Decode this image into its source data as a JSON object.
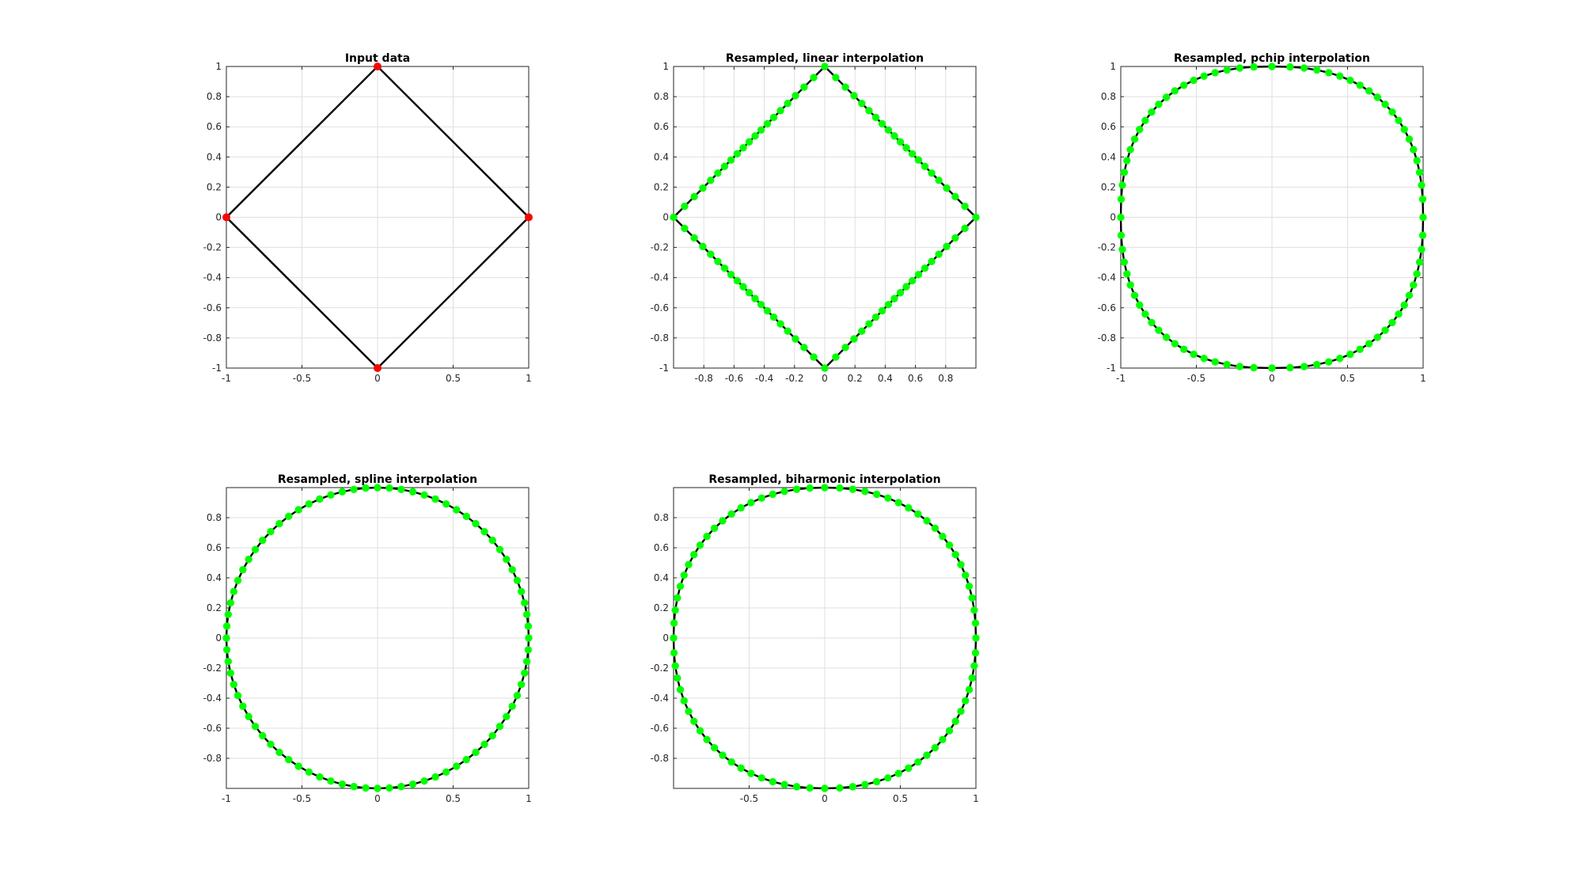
{
  "colors": {
    "line": "#000000",
    "input_markers": "#ff0000",
    "resampled_markers": "#00ff00",
    "grid": "#dfdfdf",
    "axes": "#262626"
  },
  "chart_data": [
    {
      "type": "line",
      "title": "Input data",
      "xlim": [
        -1,
        1
      ],
      "ylim": [
        -1,
        1
      ],
      "grid": true,
      "xticks": [
        -1,
        -0.5,
        0,
        0.5,
        1
      ],
      "xtick_labels": [
        "-1",
        "-0.5",
        "0",
        "0.5",
        "1"
      ],
      "yticks": [
        1,
        0.8,
        0.6,
        0.4,
        0.2,
        0,
        -0.2,
        -0.4,
        -0.6,
        -0.8,
        -1
      ],
      "ytick_labels": [
        "1",
        "0.8",
        "0.6",
        "0.4",
        "0.2",
        "0",
        "-0.2",
        "-0.4",
        "-0.6",
        "-0.8",
        "-1"
      ],
      "line": {
        "x": [
          -1,
          0,
          1,
          0,
          -1
        ],
        "y": [
          0,
          1,
          0,
          -1,
          0
        ]
      },
      "markers": {
        "x": [
          -1,
          0,
          1,
          0
        ],
        "y": [
          0,
          1,
          0,
          -1
        ],
        "color": "#ff0000"
      }
    },
    {
      "type": "line",
      "title": "Resampled, linear interpolation",
      "xlim": [
        -1,
        1
      ],
      "ylim": [
        -1,
        1
      ],
      "grid": true,
      "xticks": [
        -0.8,
        -0.6,
        -0.4,
        -0.2,
        0,
        0.2,
        0.4,
        0.6,
        0.8
      ],
      "xtick_labels": [
        "-0.8",
        "-0.6",
        "-0.4",
        "-0.2",
        "0",
        "0.2",
        "0.4",
        "0.6",
        "0.8"
      ],
      "yticks": [
        1,
        0.8,
        0.6,
        0.4,
        0.2,
        0,
        -0.2,
        -0.4,
        -0.6,
        -0.8,
        -1
      ],
      "ytick_labels": [
        "1",
        "0.8",
        "0.6",
        "0.4",
        "0.2",
        "0",
        "-0.2",
        "-0.4",
        "-0.6",
        "-0.8",
        "-1"
      ],
      "shape": "diamond",
      "points": 80,
      "markers_color": "#00ff00"
    },
    {
      "type": "line",
      "title": "Resampled, pchip interpolation",
      "xlim": [
        -1,
        1
      ],
      "ylim": [
        -1,
        1
      ],
      "grid": true,
      "xticks": [
        -1,
        -0.5,
        0,
        0.5,
        1
      ],
      "xtick_labels": [
        "-1",
        "-0.5",
        "0",
        "0.5",
        "1"
      ],
      "yticks": [
        1,
        0.8,
        0.6,
        0.4,
        0.2,
        0,
        -0.2,
        -0.4,
        -0.6,
        -0.8,
        -1
      ],
      "ytick_labels": [
        "1",
        "0.8",
        "0.6",
        "0.4",
        "0.2",
        "0",
        "-0.2",
        "-0.4",
        "-0.6",
        "-0.8",
        "-1"
      ],
      "shape": "superellipse",
      "exponent": 2.4,
      "points": 80,
      "markers_color": "#00ff00"
    },
    {
      "type": "line",
      "title": "Resampled, spline interpolation",
      "xlim": [
        -1,
        1
      ],
      "ylim": [
        -1,
        1
      ],
      "grid": true,
      "xticks": [
        -1,
        -0.5,
        0,
        0.5,
        1
      ],
      "xtick_labels": [
        "-1",
        "-0.5",
        "0",
        "0.5",
        "1"
      ],
      "yticks": [
        0.8,
        0.6,
        0.4,
        0.2,
        0,
        -0.2,
        -0.4,
        -0.6,
        -0.8
      ],
      "ytick_labels": [
        "0.8",
        "0.6",
        "0.4",
        "0.2",
        "0",
        "-0.2",
        "-0.4",
        "-0.6",
        "-0.8"
      ],
      "shape": "circle",
      "radius": 1,
      "points": 80,
      "markers_color": "#00ff00"
    },
    {
      "type": "line",
      "title": "Resampled, biharmonic interpolation",
      "xlim": [
        -1,
        1
      ],
      "ylim": [
        -1,
        1
      ],
      "grid": true,
      "xticks": [
        -0.5,
        0,
        0.5,
        1
      ],
      "xtick_labels": [
        "-0.5",
        "0",
        "0.5",
        "1"
      ],
      "yticks": [
        0.8,
        0.6,
        0.4,
        0.2,
        0,
        -0.2,
        -0.4,
        -0.6,
        -0.8
      ],
      "ytick_labels": [
        "0.8",
        "0.6",
        "0.4",
        "0.2",
        "0",
        "-0.2",
        "-0.4",
        "-0.6",
        "-0.8"
      ],
      "shape": "superellipse",
      "exponent": 2.2,
      "points": 80,
      "markers_color": "#00ff00"
    }
  ]
}
